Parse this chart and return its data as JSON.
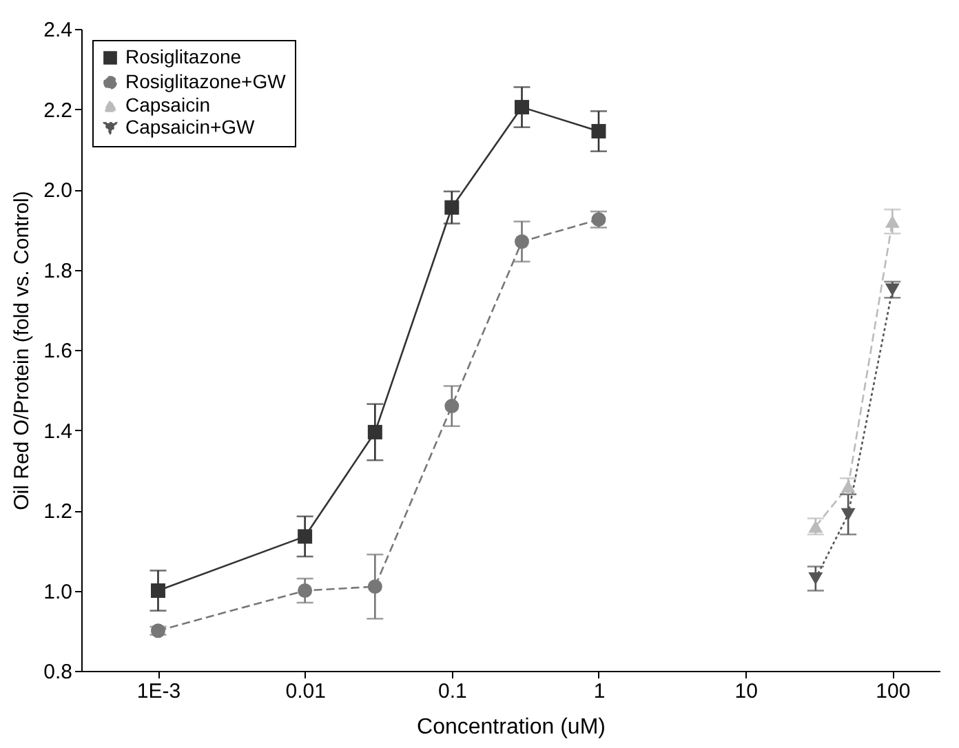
{
  "chart_data": {
    "type": "line",
    "xlabel": "Concentration (uM)",
    "ylabel": "Oil Red O/Protein (fold vs. Control)",
    "log": "x",
    "xlim": [
      0.0003,
      210
    ],
    "ylim": [
      0.8,
      2.4
    ],
    "xticks": [
      {
        "value": 0.001,
        "label": "1E-3"
      },
      0.01,
      0.1,
      1,
      10,
      100
    ],
    "yticks": [
      0.8,
      {
        "value": 1.0,
        "label": "1.0"
      },
      1.2,
      1.4,
      1.6,
      1.8,
      {
        "value": 2.0,
        "label": "2.0"
      },
      2.2,
      2.4
    ],
    "grid": false,
    "legend": "top left",
    "series": [
      {
        "name": "Rosiglitazone",
        "color": "#333333",
        "marker": "square",
        "line_style": "solid",
        "x": [
          0.001,
          0.01,
          0.03,
          0.1,
          0.3,
          1
        ],
        "values": [
          1.0,
          1.135,
          1.395,
          1.955,
          2.205,
          2.145
        ],
        "errors": [
          0.05,
          0.05,
          0.07,
          0.04,
          0.05,
          0.05
        ]
      },
      {
        "name": "Rosiglitazone+GW",
        "color": "#777777",
        "marker": "circle",
        "line_style": "dashed",
        "x": [
          0.001,
          0.01,
          0.03,
          0.1,
          0.3,
          1
        ],
        "values": [
          0.9,
          1.0,
          1.01,
          1.46,
          1.87,
          1.925
        ],
        "errors": [
          0.01,
          0.03,
          0.08,
          0.05,
          0.05,
          0.02
        ]
      },
      {
        "name": "Capsaicin",
        "color": "#bbbbbb",
        "marker": "triangle",
        "line_style": "dashed",
        "x": [
          30,
          50,
          100
        ],
        "values": [
          1.16,
          1.26,
          1.92
        ],
        "errors": [
          0.02,
          0.02,
          0.03
        ]
      },
      {
        "name": "Capsaicin+GW",
        "color": "#555555",
        "marker": "triangle-down",
        "line_style": "dotted",
        "x": [
          30,
          50,
          100
        ],
        "values": [
          1.03,
          1.19,
          1.75
        ],
        "errors": [
          0.03,
          0.05,
          0.02
        ]
      }
    ]
  }
}
